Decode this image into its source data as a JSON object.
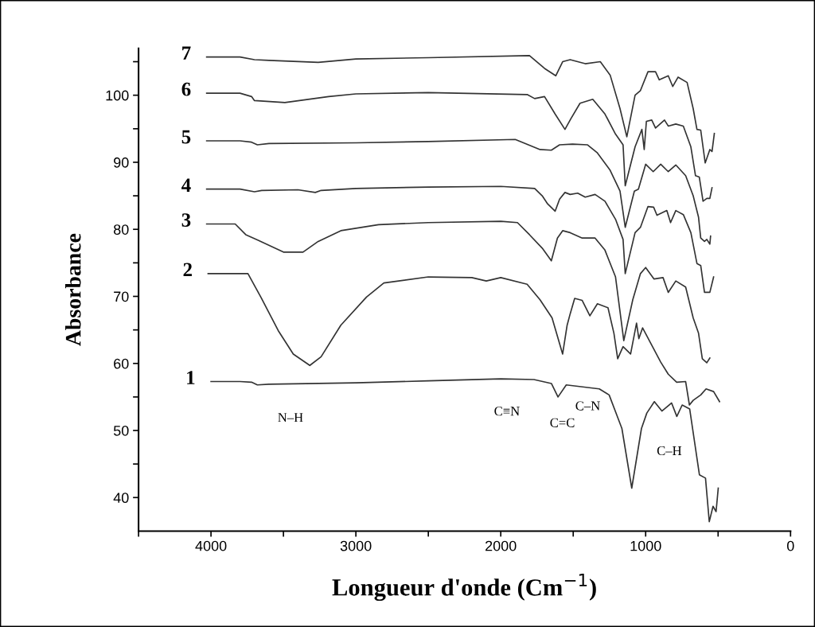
{
  "chart_data": {
    "type": "line",
    "xlabel": "Longueur d'onde (Cm$^{−1}$)",
    "ylabel": "Absorbance",
    "xlim": [
      4500,
      0
    ],
    "ylim": [
      35,
      107
    ],
    "xticks": [
      {
        "value": 4500,
        "label": null
      },
      4000,
      {
        "value": 3500,
        "label": null
      },
      3000,
      {
        "value": 2500,
        "label": null
      },
      2000,
      {
        "value": 1500,
        "label": null
      },
      1000,
      {
        "value": 500,
        "label": null
      },
      0
    ],
    "yticks": [
      40,
      {
        "value": 45,
        "label": null
      },
      50,
      {
        "value": 55,
        "label": null
      },
      60,
      {
        "value": 65,
        "label": null
      },
      70,
      {
        "value": 75,
        "label": null
      },
      80,
      {
        "value": 85,
        "label": null
      },
      90,
      {
        "value": 95,
        "label": null
      },
      100,
      {
        "value": 105,
        "label": null
      }
    ],
    "series": [
      {
        "name": "1",
        "color": "#333333",
        "x": [
          4000,
          3800,
          3720,
          3680,
          3600,
          3000,
          2500,
          2000,
          1771,
          1650,
          1605,
          1548,
          1320,
          1252,
          1164,
          1096,
          1029,
          992,
          940,
          888,
          821,
          785,
          748,
          696,
          629,
          587,
          561,
          535,
          514,
          499
        ],
        "values": [
          57.3,
          57.3,
          57.2,
          56.8,
          56.9,
          57.1,
          57.4,
          57.7,
          57.6,
          57.0,
          55.0,
          56.8,
          56.2,
          55.3,
          50.3,
          41.4,
          50.3,
          52.6,
          54.3,
          52.9,
          54.1,
          52.1,
          53.8,
          53.2,
          43.4,
          42.9,
          36.4,
          38.7,
          37.9,
          41.4
        ]
      },
      {
        "name": "2",
        "color": "#333333",
        "x": [
          4020,
          3745,
          3656,
          3536,
          3432,
          3318,
          3240,
          3104,
          2927,
          2807,
          2500,
          2200,
          2100,
          2000,
          1818,
          1729,
          1646,
          1573,
          1542,
          1521,
          1490,
          1438,
          1385,
          1333,
          1260,
          1219,
          1193,
          1156,
          1104,
          1063,
          1047,
          1021,
          896,
          844,
          786,
          724,
          698,
          672,
          620,
          583,
          531,
          490
        ],
        "values": [
          73.4,
          73.4,
          69.9,
          64.9,
          61.4,
          59.7,
          61.0,
          65.7,
          69.9,
          72.0,
          72.9,
          72.8,
          72.3,
          72.8,
          71.8,
          69.5,
          66.8,
          61.4,
          65.7,
          67.4,
          69.7,
          69.4,
          67.1,
          68.9,
          68.3,
          64.5,
          60.7,
          62.5,
          61.4,
          66.0,
          63.7,
          65.3,
          60.2,
          58.4,
          57.2,
          57.3,
          53.8,
          54.5,
          55.3,
          56.2,
          55.8,
          54.3
        ]
      },
      {
        "name": "3",
        "color": "#333333",
        "x": [
          4030,
          3833,
          3760,
          3677,
          3500,
          3365,
          3260,
          3104,
          2844,
          2500,
          2000,
          1885,
          1802,
          1714,
          1651,
          1609,
          1573,
          1521,
          1438,
          1349,
          1281,
          1208,
          1151,
          1089,
          1036,
          1000,
          943,
          880,
          844,
          792,
          724,
          672,
          635,
          609,
          578,
          557
        ],
        "values": [
          80.8,
          80.8,
          79.2,
          78.4,
          76.6,
          76.6,
          78.2,
          79.8,
          80.7,
          81.0,
          81.2,
          81.0,
          79.2,
          77.2,
          75.3,
          78.7,
          79.8,
          79.5,
          78.7,
          78.7,
          76.9,
          72.9,
          63.4,
          69.5,
          73.4,
          74.3,
          72.6,
          72.8,
          70.6,
          72.3,
          71.4,
          66.8,
          64.5,
          60.7,
          60.1,
          60.8
        ]
      },
      {
        "name": "4",
        "color": "#333333",
        "x": [
          4030,
          3800,
          3700,
          3650,
          3400,
          3280,
          3240,
          3000,
          2500,
          2000,
          1766,
          1714,
          1677,
          1625,
          1594,
          1557,
          1521,
          1469,
          1417,
          1349,
          1281,
          1208,
          1156,
          1141,
          1073,
          1036,
          984,
          945,
          922,
          854,
          828,
          792,
          740,
          688,
          646,
          620,
          594,
          557,
          531
        ],
        "values": [
          86.0,
          86.0,
          85.6,
          85.8,
          85.9,
          85.5,
          85.8,
          86.1,
          86.3,
          86.4,
          86.1,
          85.0,
          83.8,
          82.7,
          84.5,
          85.5,
          85.2,
          85.4,
          84.8,
          85.2,
          84.2,
          81.5,
          78.5,
          73.4,
          79.5,
          80.3,
          83.4,
          83.3,
          82.1,
          82.8,
          81.0,
          82.8,
          82.2,
          79.5,
          74.9,
          74.6,
          70.6,
          70.6,
          72.9
        ]
      },
      {
        "name": "5",
        "color": "#333333",
        "x": [
          4030,
          3800,
          3720,
          3680,
          3600,
          3000,
          2500,
          1900,
          1729,
          1651,
          1594,
          1505,
          1401,
          1333,
          1245,
          1177,
          1141,
          1078,
          1050,
          1000,
          948,
          896,
          844,
          792,
          724,
          672,
          635,
          620,
          594,
          578,
          557,
          552
        ],
        "values": [
          93.2,
          93.2,
          93.0,
          92.6,
          92.8,
          92.9,
          93.1,
          93.4,
          91.9,
          91.8,
          92.6,
          92.7,
          92.6,
          91.4,
          88.8,
          85.7,
          80.3,
          85.7,
          86.0,
          89.7,
          88.6,
          89.7,
          88.6,
          89.6,
          88.0,
          85.0,
          81.8,
          78.7,
          78.2,
          78.5,
          77.8,
          79.0
        ]
      },
      {
        "name": "6",
        "color": "#333333",
        "x": [
          4030,
          3800,
          3720,
          3700,
          3490,
          3188,
          3000,
          2500,
          1818,
          1766,
          1698,
          1625,
          1557,
          1516,
          1453,
          1365,
          1281,
          1208,
          1156,
          1141,
          1073,
          1026,
          1010,
          995,
          958,
          932,
          870,
          844,
          792,
          740,
          688,
          656,
          630,
          604,
          578,
          557,
          542
        ],
        "values": [
          100.3,
          100.3,
          99.8,
          99.2,
          98.9,
          99.8,
          100.2,
          100.4,
          100.1,
          99.5,
          99.8,
          97.2,
          94.9,
          96.5,
          98.8,
          99.4,
          97.2,
          94.2,
          92.6,
          86.5,
          92.3,
          94.9,
          91.9,
          96.1,
          96.3,
          95.1,
          96.3,
          95.4,
          95.7,
          95.4,
          92.3,
          88.0,
          87.8,
          84.2,
          84.6,
          84.6,
          86.2
        ]
      },
      {
        "name": "7",
        "color": "#333333",
        "x": [
          4030,
          3800,
          3700,
          3600,
          3260,
          3000,
          2500,
          1802,
          1698,
          1620,
          1573,
          1521,
          1417,
          1313,
          1245,
          1177,
          1130,
          1073,
          1036,
          984,
          932,
          906,
          844,
          813,
          776,
          714,
          672,
          646,
          620,
          589,
          557,
          542,
          526
        ],
        "values": [
          105.7,
          105.7,
          105.3,
          105.2,
          104.9,
          105.4,
          105.6,
          105.9,
          104.0,
          102.9,
          105.0,
          105.3,
          104.7,
          105.0,
          103.0,
          98.0,
          93.8,
          100.0,
          100.7,
          103.5,
          103.5,
          102.3,
          102.9,
          101.3,
          102.7,
          101.9,
          98.0,
          94.9,
          94.8,
          89.9,
          91.9,
          91.6,
          94.3
        ]
      }
    ],
    "annotations": [
      "N–H",
      "C≡N",
      "C=C",
      "C–N",
      "C–H"
    ]
  }
}
